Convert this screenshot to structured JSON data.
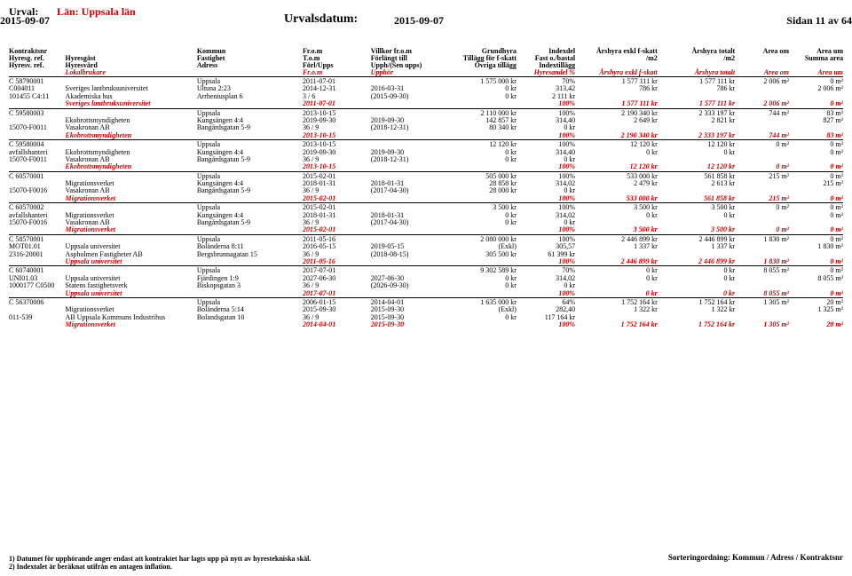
{
  "header": {
    "urval_label": "Urval:",
    "lan": "Län: Uppsala län",
    "date_left": "2015-09-07",
    "urvalsdatum_label": "Urvalsdatum:",
    "urvalsdatum_value": "2015-09-07",
    "sidan": "Sidan 11 av 64"
  },
  "col_headers": {
    "row1": [
      "Kontraktsnr",
      "",
      "Kommun",
      "Fr.o.m",
      "Villkor fr.o.m",
      "Grundhyra",
      "Indexdel",
      "Årshyra exkl f-skatt",
      "Årshyra totalt",
      "Area om",
      "Area um"
    ],
    "row2": [
      "Hyresg. ref.",
      "Hyresgäst",
      "Fastighet",
      "T.o.m",
      "Förlängt till",
      "Tillägg för f-skatt",
      "Fast o./bastal",
      "/m2",
      "/m2",
      "",
      "Summa area"
    ],
    "row3": [
      "Hyresv. ref.",
      "Hyresvärd",
      "Adress",
      "Förl/Upps",
      "Upph/(Sen upps)",
      "Övriga tillägg",
      "Indextillägg",
      "",
      "",
      "",
      ""
    ],
    "row4": [
      "",
      "Lokalbrukare",
      "",
      "Fr.o.m",
      "Upphör",
      "",
      "Hyresandel %",
      "Årshyra exkl f-skatt",
      "Årshyra totalt",
      "Area om",
      "Area um"
    ]
  },
  "blocks": [
    {
      "rows": [
        [
          "C 58790001",
          "",
          "Uppsala",
          "2011-07-01",
          "",
          "1 575 000 kr",
          "70%",
          "1 577 111 kr",
          "1 577 111 kr",
          "2 006 m²",
          "0 m²"
        ],
        [
          "C004011",
          "Sveriges lantbruksuniversitet",
          "Ultuna 2:23",
          "2014-12-31",
          "2016-03-31",
          "0 kr",
          "313,42",
          "786 kr",
          "786 kr",
          "",
          "2 006 m²"
        ],
        [
          "101455  C4:11",
          "Akademiska hus",
          "Arrheniusplan 6",
          "3 / 6",
          "(2015-09-30)",
          "0 kr",
          "2 111 kr",
          "",
          "",
          "",
          ""
        ]
      ],
      "sum": [
        "",
        "Sveriges lantbruksuniversitet",
        "",
        "2011-07-01",
        "",
        "",
        "100%",
        "1 577 111 kr",
        "1 577 111 kr",
        "2 006 m²",
        "0 m²"
      ]
    },
    {
      "rows": [
        [
          "C 59580003",
          "",
          "Uppsala",
          "2013-10-15",
          "",
          "2 110 000 kr",
          "100%",
          "2 190 340 kr",
          "2 333 197 kr",
          "744 m²",
          "83 m²"
        ],
        [
          "",
          "Ekobrottsmyndigheten",
          "Kungsängen 4:4",
          "2019-09-30",
          "2019-09-30",
          "142 857 kr",
          "314,40",
          "2 649 kr",
          "2 821 kr",
          "",
          "827 m²"
        ],
        [
          "15070-F0011",
          "Vasakronan AB",
          "Bangårdsgatan 5-9",
          "36 / 9",
          "(2018-12-31)",
          "80 340 kr",
          "0 kr",
          "",
          "",
          "",
          ""
        ]
      ],
      "sum": [
        "",
        "Ekobrottsmyndigheten",
        "",
        "2013-10-15",
        "",
        "",
        "100%",
        "2 190 340 kr",
        "2 333 197 kr",
        "744 m²",
        "83 m²"
      ]
    },
    {
      "rows": [
        [
          "C 59580004",
          "",
          "Uppsala",
          "2013-10-15",
          "",
          "12 120 kr",
          "100%",
          "12 120 kr",
          "12 120 kr",
          "0 m²",
          "0 m²"
        ],
        [
          "avfallshanteri",
          "Ekobrottsmyndigheten",
          "Kungsängen 4:4",
          "2019-09-30",
          "2019-09-30",
          "0 kr",
          "314,40",
          "0 kr",
          "0 kr",
          "",
          "0 m²"
        ],
        [
          "15070-F0011",
          "Vasakronan AB",
          "Bangårdsgatan 5-9",
          "36 / 9",
          "(2018-12-31)",
          "0 kr",
          "0 kr",
          "",
          "",
          "",
          ""
        ]
      ],
      "sum": [
        "",
        "Ekobrottsmyndigheten",
        "",
        "2013-10-15",
        "",
        "",
        "100%",
        "12 120 kr",
        "12 120 kr",
        "0 m²",
        "0 m²"
      ]
    },
    {
      "rows": [
        [
          "C 60570001",
          "",
          "Uppsala",
          "2015-02-01",
          "",
          "505 000 kr",
          "100%",
          "533 000 kr",
          "561 858 kr",
          "215 m²",
          "0 m²"
        ],
        [
          "",
          "Migrationsverket",
          "Kungsängen 4:4",
          "2018-01-31",
          "2018-01-31",
          "28 858 kr",
          "314,02",
          "2 479 kr",
          "2 613 kr",
          "",
          "215 m²"
        ],
        [
          "15070-F0016",
          "Vasakronan AB",
          "Bangårdsgatan 5-9",
          "36 / 9",
          "(2017-04-30)",
          "28 000 kr",
          "0 kr",
          "",
          "",
          "",
          ""
        ]
      ],
      "sum": [
        "",
        "Migrationsverket",
        "",
        "2015-02-01",
        "",
        "",
        "100%",
        "533 000 kr",
        "561 858 kr",
        "215 m²",
        "0 m²"
      ]
    },
    {
      "rows": [
        [
          "C 60570002",
          "",
          "Uppsala",
          "2015-02-01",
          "",
          "3 500 kr",
          "100%",
          "3 500 kr",
          "3 500 kr",
          "0 m²",
          "0 m²"
        ],
        [
          "avfallshanteri",
          "Migrationsverket",
          "Kungsängen 4:4",
          "2018-01-31",
          "2018-01-31",
          "0 kr",
          "314,02",
          "0 kr",
          "0 kr",
          "",
          "0 m²"
        ],
        [
          "15070-F0016",
          "Vasakronan AB",
          "Bangårdsgatan 5-9",
          "36 / 9",
          "(2017-04-30)",
          "0 kr",
          "0 kr",
          "",
          "",
          "",
          ""
        ]
      ],
      "sum": [
        "",
        "Migrationsverket",
        "",
        "2015-02-01",
        "",
        "",
        "100%",
        "3 500 kr",
        "3 500 kr",
        "0 m²",
        "0 m²"
      ]
    },
    {
      "rows": [
        [
          "C 58570001",
          "",
          "Uppsala",
          "2011-05-16",
          "",
          "2 080 000 kr",
          "100%",
          "2 446 899 kr",
          "2 446 899 kr",
          "1 830 m²",
          "0 m²"
        ],
        [
          "MOT01.01",
          "Uppsala universitet",
          "Boländerna 8:11",
          "2016-05-15",
          "2019-05-15",
          "(Exkl)",
          "305,57",
          "1 337 kr",
          "1 337 kr",
          "",
          "1 830 m²"
        ],
        [
          "2316-20001",
          "Aspholmen Fastigheter AB",
          "Bergsbrunnagatan 15",
          "36 / 9",
          "(2018-08-15)",
          "305 500 kr",
          "61 399 kr",
          "",
          "",
          "",
          ""
        ]
      ],
      "sum": [
        "",
        "Uppsala universitet",
        "",
        "2011-05-16",
        "",
        "",
        "100%",
        "2 446 899 kr",
        "2 446 899 kr",
        "1 830 m²",
        "0 m²"
      ]
    },
    {
      "rows": [
        [
          "C 60740001",
          "",
          "Uppsala",
          "2017-07-01",
          "",
          "9 302 589 kr",
          "70%",
          "0 kr",
          "0 kr",
          "8 055 m²",
          "0 m²"
        ],
        [
          "UNI01.03",
          "Uppsala universitet",
          "Fjärdingen 1:9",
          "2027-06-30",
          "2027-06-30",
          "0 kr",
          "314,02",
          "0 kr",
          "0 kr",
          "",
          "8 055 m²"
        ],
        [
          "1000177  C0500",
          "Statens fastighetsverk",
          "Biskopsgatan 3",
          "36 / 9",
          "(2026-09-30)",
          "0 kr",
          "0 kr",
          "",
          "",
          "",
          ""
        ]
      ],
      "sum": [
        "",
        "Uppsala universitet",
        "",
        "2017-07-01",
        "",
        "",
        "100%",
        "0 kr",
        "0 kr",
        "8 055 m²",
        "0 m²"
      ]
    },
    {
      "rows": [
        [
          "C 56370006",
          "",
          "Uppsala",
          "2006-01-15",
          "2014-04-01",
          "1 635 000 kr",
          "64%",
          "1 752 164 kr",
          "1 752 164 kr",
          "1 305 m²",
          "20 m²"
        ],
        [
          "",
          "Migrationsverket",
          "Boländerna 5:14",
          "2015-09-30",
          "2015-09-30",
          "(Exkl)",
          "282,40",
          "1 322 kr",
          "1 322 kr",
          "",
          "1 325 m²"
        ],
        [
          "011-539",
          "AB Uppsala Kommuns Industrihus",
          "Bolandsgatan 10",
          "36 / 9",
          "2015-09-30",
          "0 kr",
          "117 164 kr",
          "",
          "",
          "",
          ""
        ]
      ],
      "sum": [
        "",
        "Migrationsverket",
        "",
        "2014-04-01",
        "2015-09-30",
        "",
        "100%",
        "1 752 164 kr",
        "1 752 164 kr",
        "1 305 m²",
        "20 m²"
      ]
    }
  ],
  "footer": {
    "note1": "1) Datumet för upphörande anger endast att kontraktet har lagts upp på nytt av hyrestekniska skäl.",
    "note2": "2) Indextalet är beräknat utifrån en antagen inflation.",
    "sort": "Sorteringordning: Kommun / Adress / Kontraktsnr"
  }
}
